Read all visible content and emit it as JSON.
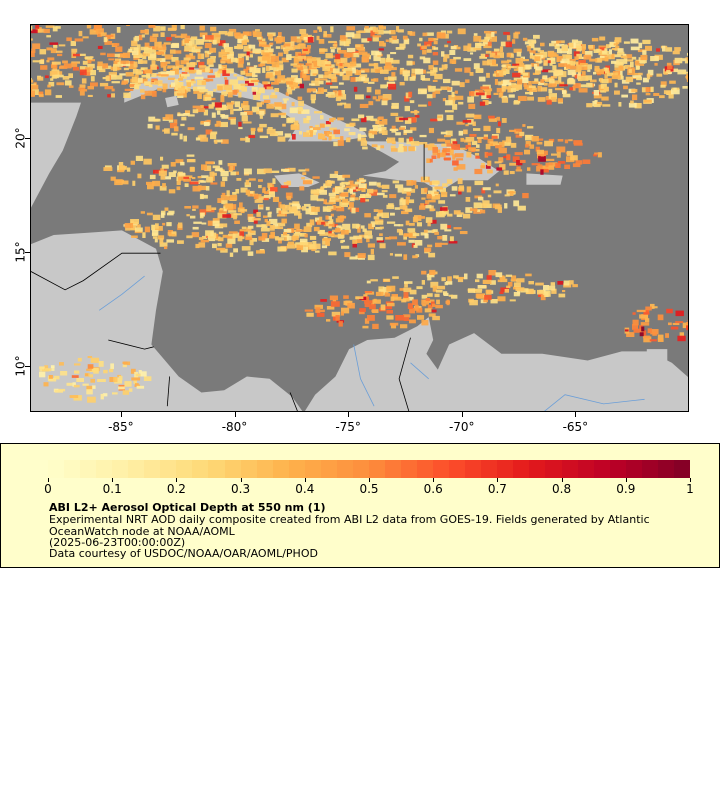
{
  "map": {
    "x_ticks": [
      "-85°",
      "-80°",
      "-75°",
      "-70°",
      "-65°"
    ],
    "y_ticks": [
      "20°",
      "15°",
      "10°"
    ],
    "x_tick_lons": [
      -85,
      -80,
      -75,
      -70,
      -65
    ],
    "y_tick_lats": [
      20,
      15,
      10
    ],
    "lon_range": [
      -89,
      -60
    ],
    "lat_range": [
      8,
      25
    ],
    "colors": {
      "ocean_nodata": "#7a7a7a",
      "land": "#c8c8c8",
      "rivers": "#6a9ed8",
      "borders": "#000000"
    }
  },
  "legend": {
    "title": "ABI L2+ Aerosol Optical Depth at 550 nm (1)",
    "description": "Experimental NRT AOD daily composite created from ABI L2 data from GOES-19. Fields generated by Atlantic OceanWatch node at NOAA/AOML",
    "time": "(2025-06-23T00:00:00Z)",
    "credit": "Data courtesy of USDOC/NOAA/OAR/AOML/PHOD",
    "ticks": [
      "0",
      "0.1",
      "0.2",
      "0.3",
      "0.4",
      "0.5",
      "0.6",
      "0.7",
      "0.8",
      "0.9",
      "1"
    ],
    "range": [
      0,
      1
    ],
    "colormap": [
      "#fffecb",
      "#ffefa5",
      "#fed976",
      "#feb24c",
      "#fd8d3c",
      "#fc4e2a",
      "#e31a1c",
      "#bd0026",
      "#800026"
    ]
  }
}
